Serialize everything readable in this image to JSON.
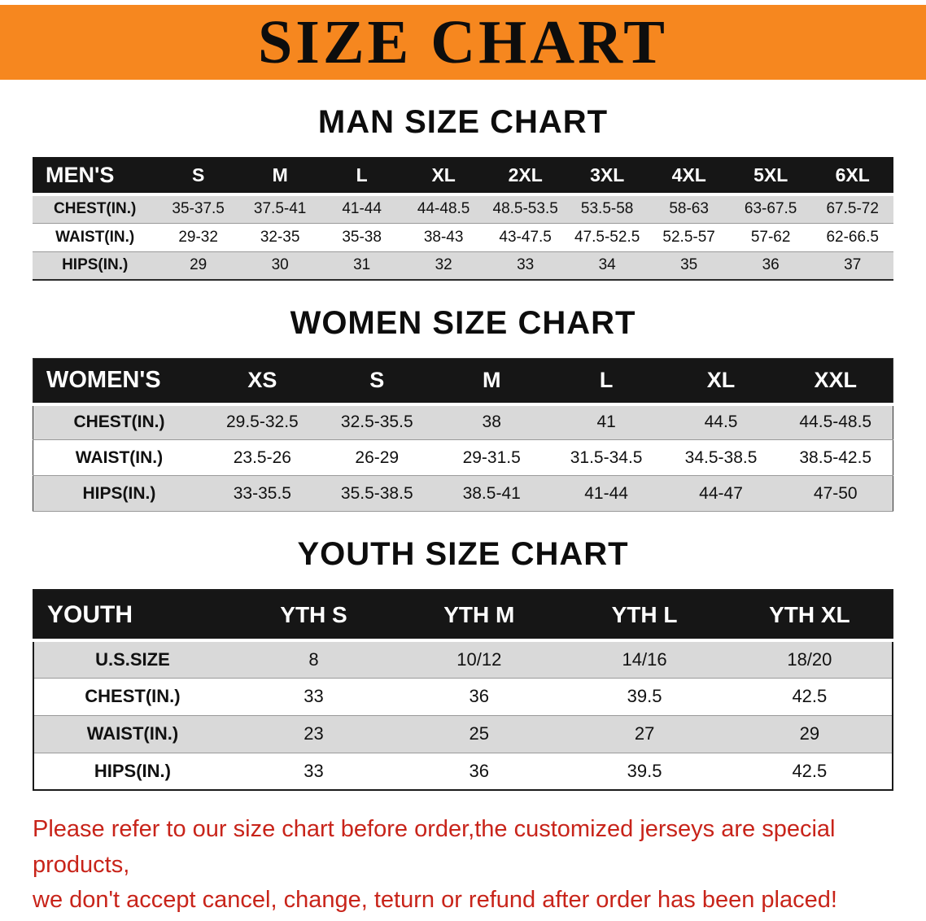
{
  "banner": {
    "title": "SIZE CHART",
    "bg_color": "#f6871f",
    "text_color": "#0d0d0d"
  },
  "sections": [
    {
      "id": "men",
      "title": "MAN SIZE CHART",
      "header_label": "MEN'S",
      "columns": [
        "S",
        "M",
        "L",
        "XL",
        "2XL",
        "3XL",
        "4XL",
        "5XL",
        "6XL"
      ],
      "rows": [
        {
          "label": "CHEST(IN.)",
          "values": [
            "35-37.5",
            "37.5-41",
            "41-44",
            "44-48.5",
            "48.5-53.5",
            "53.5-58",
            "58-63",
            "63-67.5",
            "67.5-72"
          ]
        },
        {
          "label": "WAIST(IN.)",
          "values": [
            "29-32",
            "32-35",
            "35-38",
            "38-43",
            "43-47.5",
            "47.5-52.5",
            "52.5-57",
            "57-62",
            "62-66.5"
          ]
        },
        {
          "label": "HIPS(IN.)",
          "values": [
            "29",
            "30",
            "31",
            "32",
            "33",
            "34",
            "35",
            "36",
            "37"
          ]
        }
      ]
    },
    {
      "id": "women",
      "title": "WOMEN SIZE CHART",
      "header_label": "WOMEN'S",
      "columns": [
        "XS",
        "S",
        "M",
        "L",
        "XL",
        "XXL"
      ],
      "rows": [
        {
          "label": "CHEST(IN.)",
          "values": [
            "29.5-32.5",
            "32.5-35.5",
            "38",
            "41",
            "44.5",
            "44.5-48.5"
          ]
        },
        {
          "label": "WAIST(IN.)",
          "values": [
            "23.5-26",
            "26-29",
            "29-31.5",
            "31.5-34.5",
            "34.5-38.5",
            "38.5-42.5"
          ]
        },
        {
          "label": "HIPS(IN.)",
          "values": [
            "33-35.5",
            "35.5-38.5",
            "38.5-41",
            "41-44",
            "44-47",
            "47-50"
          ]
        }
      ]
    },
    {
      "id": "youth",
      "title": "YOUTH SIZE CHART",
      "header_label": "YOUTH",
      "columns": [
        "YTH S",
        "YTH M",
        "YTH L",
        "YTH XL"
      ],
      "rows": [
        {
          "label": "U.S.SIZE",
          "values": [
            "8",
            "10/12",
            "14/16",
            "18/20"
          ]
        },
        {
          "label": "CHEST(IN.)",
          "values": [
            "33",
            "36",
            "39.5",
            "42.5"
          ]
        },
        {
          "label": "WAIST(IN.)",
          "values": [
            "23",
            "25",
            "27",
            "29"
          ]
        },
        {
          "label": "HIPS(IN.)",
          "values": [
            "33",
            "36",
            "39.5",
            "42.5"
          ]
        }
      ]
    }
  ],
  "disclaimer": {
    "line1": "Please refer to our size chart before order,the customized jerseys are special products,",
    "line2": "we don't accept cancel, change, teturn or refund after order has been placed!",
    "color": "#c8241a"
  }
}
